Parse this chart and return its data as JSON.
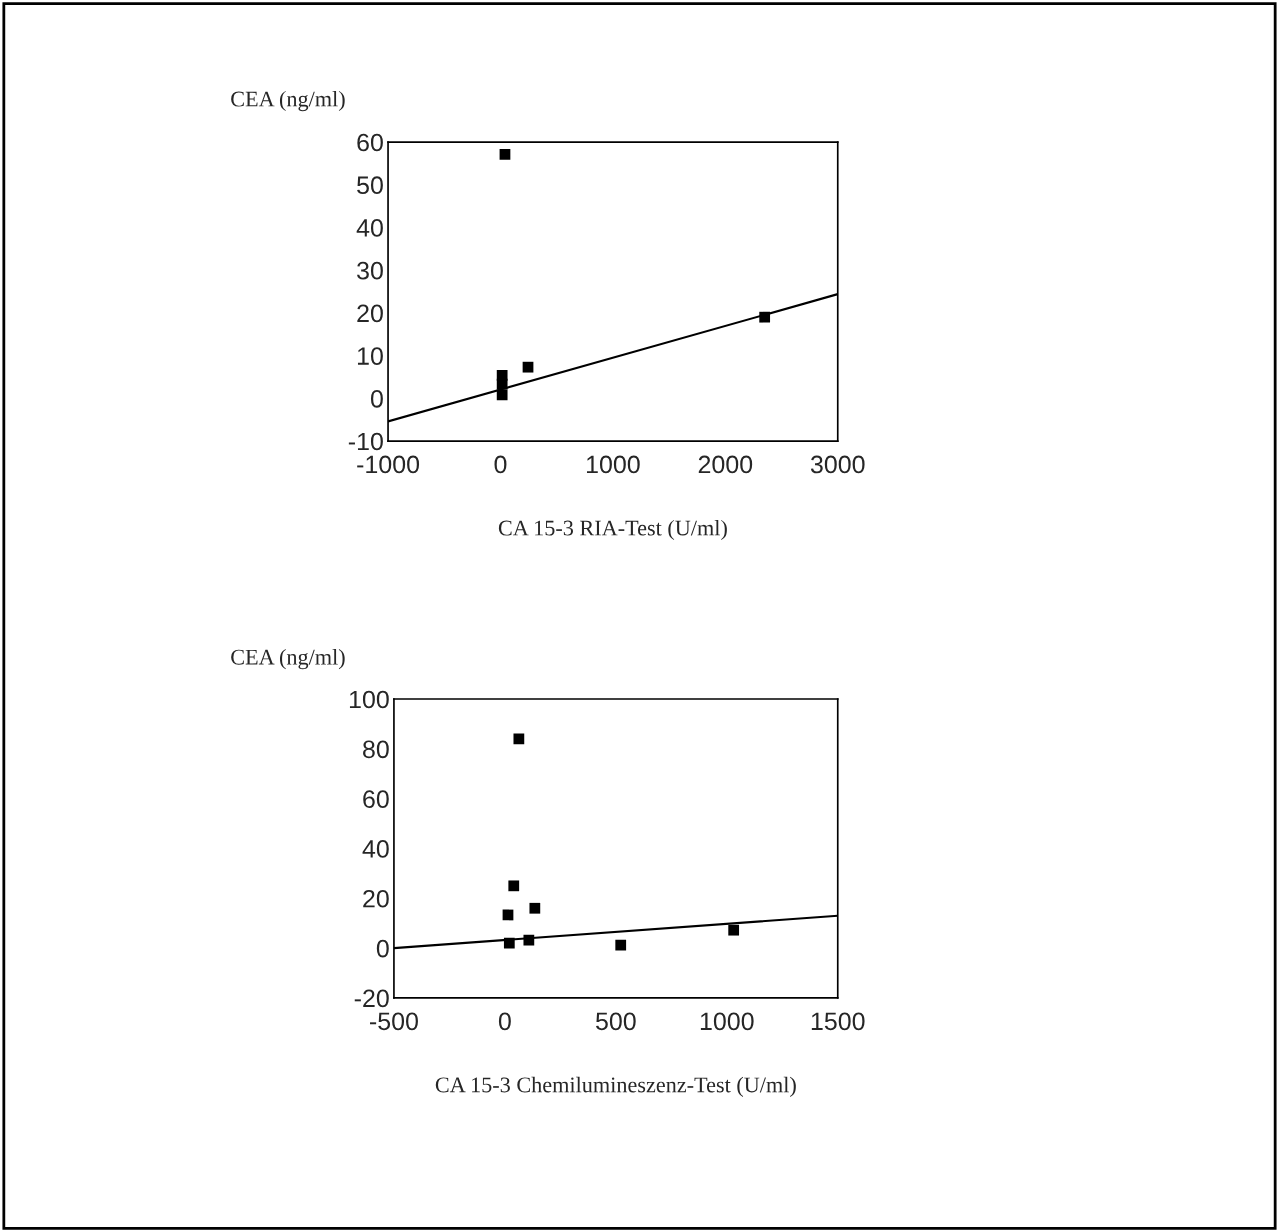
{
  "chart_data": [
    {
      "type": "scatter",
      "xlabel": "CA 15-3 RIA-Test (U/ml)",
      "ylabel": "CEA (ng/ml)",
      "grid": false,
      "xlim": [
        -1000,
        3000
      ],
      "xticks": [
        -1000,
        0,
        1000,
        2000,
        3000
      ],
      "ylim": [
        -10,
        60
      ],
      "yticks": [
        -10,
        0,
        10,
        20,
        30,
        40,
        50,
        60
      ],
      "series": [
        {
          "marker": "square",
          "color": "#000000",
          "x": [
            40,
            2350,
            245,
            15,
            15,
            15
          ],
          "values": [
            57.1,
            19,
            7.3,
            5.4,
            0.8,
            3.3
          ]
        },
        {
          "type": "line",
          "color": "#000000",
          "x": [
            -1000,
            3000
          ],
          "values": [
            -5.4,
            24.4
          ]
        }
      ]
    },
    {
      "type": "scatter",
      "xlabel": "CA 15-3 Chemilumineszenz-Test (U/ml)",
      "ylabel": "CEA (ng/ml)",
      "grid": false,
      "xlim": [
        -500,
        1500
      ],
      "xticks": [
        -500,
        0,
        500,
        1000,
        1500
      ],
      "ylim": [
        -20,
        100
      ],
      "yticks": [
        -20,
        0,
        20,
        40,
        60,
        80,
        100
      ],
      "series": [
        {
          "marker": "square",
          "color": "#000000",
          "x": [
            63,
            40,
            14,
            135,
            108,
            522,
            1031,
            20
          ],
          "values": [
            84,
            25,
            13.3,
            16,
            3.2,
            1.2,
            7.2,
            2
          ]
        },
        {
          "type": "line",
          "color": "#000000",
          "x": [
            -500,
            1500
          ],
          "values": [
            0,
            13
          ]
        }
      ]
    }
  ]
}
